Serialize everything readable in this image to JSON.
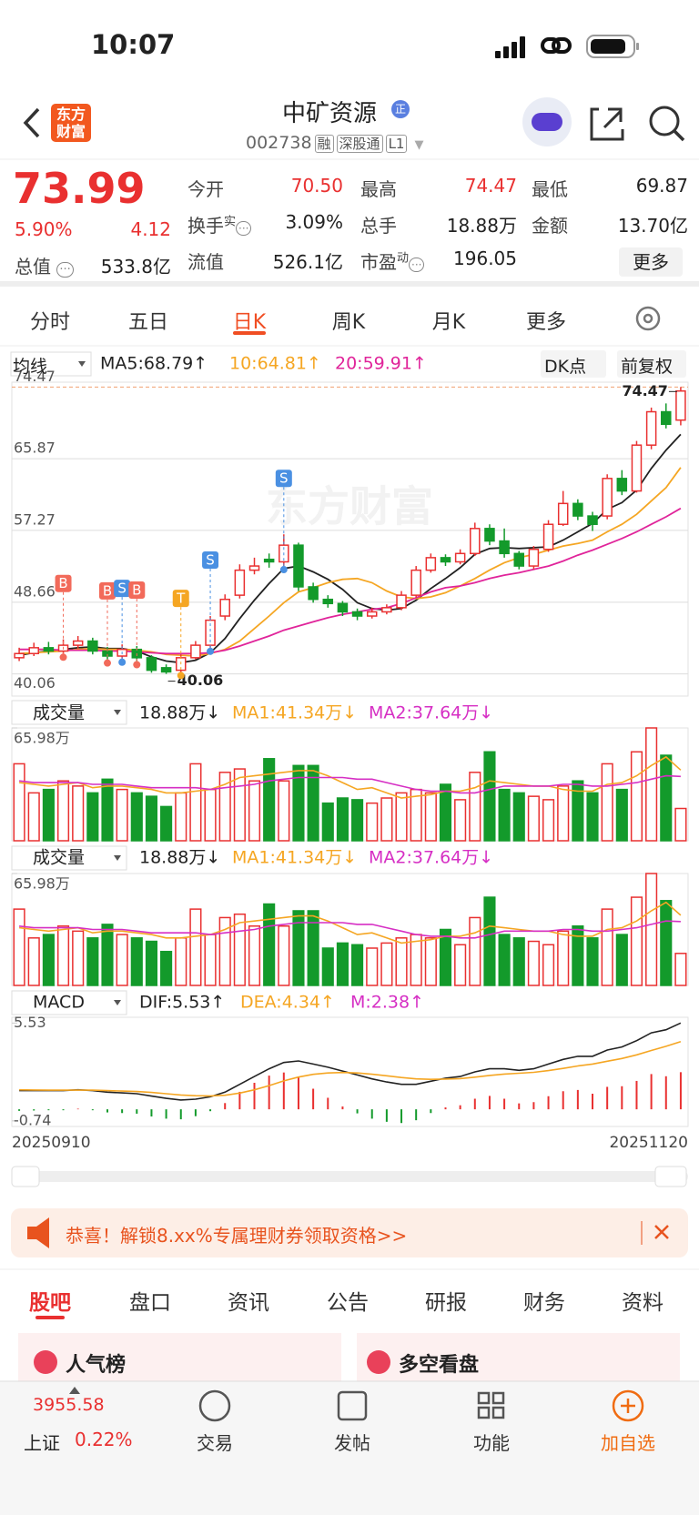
{
  "status_bar": {
    "time": "10:07"
  },
  "header": {
    "logo": [
      "东方",
      "财富"
    ],
    "title": "中矿资源",
    "badge": "正",
    "code": "002738",
    "tags": [
      "融",
      "深股通",
      "L1"
    ]
  },
  "quote": {
    "price": "73.99",
    "change_pct": "5.90%",
    "change": "4.12",
    "total_value": {
      "label": "总值",
      "value": "533.8亿"
    },
    "fields": [
      {
        "label": "今开",
        "value": "70.50",
        "color": "#e93030"
      },
      {
        "label": "最高",
        "value": "74.47",
        "color": "#e93030"
      },
      {
        "label": "最低",
        "value": "69.87"
      },
      {
        "label": "换手",
        "sup": "实",
        "value": "3.09%"
      },
      {
        "label": "总手",
        "value": "18.88万"
      },
      {
        "label": "金额",
        "value": "13.70亿"
      },
      {
        "label": "流值",
        "value": "526.1亿"
      },
      {
        "label": "市盈",
        "sup": "动",
        "value": "196.05"
      }
    ],
    "more": "更多"
  },
  "period_tabs": {
    "items": [
      "分时",
      "五日",
      "日K",
      "周K",
      "月K",
      "更多"
    ],
    "active": 2
  },
  "toolbar": {
    "indicator": "均线",
    "dk": "DK点",
    "adjust": "前复权"
  },
  "chart_data": [
    {
      "type": "candlestick",
      "watermark": "东方财富",
      "open": [
        42.0,
        42.5,
        43.2,
        42.8,
        43.5,
        44.0,
        42.8,
        42.2,
        43.0,
        42.0,
        40.8,
        40.5,
        42.0,
        43.5,
        47.0,
        49.5,
        52.5,
        53.8,
        53.5,
        55.5,
        50.5,
        49.0,
        48.5,
        47.5,
        47.0,
        47.5,
        48.0,
        49.5,
        52.5,
        54.0,
        53.5,
        54.5,
        57.5,
        56.0,
        54.5,
        53.0,
        55.0,
        58.0,
        60.5,
        59.0,
        59.0,
        63.5,
        62.0,
        67.5,
        71.5,
        70.5
      ],
      "close": [
        42.5,
        43.2,
        42.8,
        43.5,
        44.0,
        42.8,
        42.2,
        43.0,
        42.0,
        40.5,
        40.3,
        42.0,
        43.5,
        46.5,
        49.0,
        52.5,
        53.0,
        53.5,
        55.5,
        50.5,
        49.0,
        48.5,
        47.5,
        47.0,
        47.5,
        48.0,
        49.5,
        52.5,
        54.0,
        53.5,
        54.5,
        57.5,
        56.0,
        54.5,
        53.0,
        55.0,
        58.0,
        60.5,
        59.0,
        58.0,
        63.5,
        62.0,
        67.5,
        71.5,
        70.0,
        73.99
      ],
      "high": [
        43.2,
        43.8,
        43.9,
        44.2,
        44.6,
        44.4,
        43.3,
        43.6,
        43.4,
        42.3,
        41.2,
        42.4,
        44.0,
        47.0,
        49.6,
        53.2,
        54.0,
        54.5,
        56.8,
        55.8,
        51.0,
        49.5,
        48.8,
        47.9,
        48.0,
        48.4,
        50.0,
        53.0,
        54.5,
        54.4,
        55.0,
        58.2,
        58.0,
        57.5,
        54.8,
        55.4,
        58.5,
        62.0,
        61.0,
        59.5,
        64.0,
        64.5,
        68.0,
        72.0,
        72.5,
        74.47
      ],
      "low": [
        41.6,
        42.2,
        42.4,
        42.5,
        43.1,
        42.4,
        41.8,
        41.9,
        41.6,
        40.2,
        40.06,
        40.3,
        41.8,
        43.2,
        46.5,
        49.1,
        52.0,
        52.8,
        53.0,
        50.0,
        48.6,
        48.0,
        47.0,
        46.5,
        46.7,
        47.2,
        47.7,
        49.2,
        52.2,
        53.0,
        53.2,
        54.2,
        55.5,
        54.0,
        52.6,
        52.6,
        54.7,
        57.8,
        58.5,
        57.2,
        58.6,
        61.5,
        61.8,
        67.0,
        69.5,
        69.87
      ],
      "up_color": "#e93030",
      "down_color": "#139a2b",
      "series": [
        {
          "name": "MA5:68.79↑",
          "color": "#222222",
          "values": [
            42.3,
            42.6,
            42.8,
            43.0,
            43.2,
            43.3,
            43.1,
            43.1,
            42.8,
            42.1,
            41.6,
            41.4,
            41.7,
            42.6,
            44.3,
            46.7,
            48.9,
            50.9,
            52.7,
            53.0,
            52.3,
            51.4,
            50.2,
            48.6,
            47.9,
            47.7,
            47.9,
            48.9,
            50.3,
            51.5,
            52.8,
            54.4,
            55.1,
            55.2,
            55.1,
            55.2,
            55.3,
            56.1,
            57.1,
            58.1,
            59.8,
            60.6,
            62.1,
            64.7,
            66.9,
            68.79
          ]
        },
        {
          "name": "10:64.81↑",
          "color": "#f5a623",
          "values": [
            42.5,
            42.6,
            42.7,
            42.8,
            43.0,
            43.1,
            43.0,
            43.0,
            42.9,
            42.7,
            42.4,
            42.3,
            42.2,
            42.5,
            43.0,
            44.0,
            45.5,
            47.0,
            48.6,
            49.9,
            50.4,
            51.0,
            51.4,
            51.5,
            51.0,
            50.0,
            49.3,
            49.1,
            49.3,
            49.8,
            50.6,
            51.5,
            52.5,
            53.4,
            54.0,
            54.4,
            54.9,
            55.4,
            55.7,
            56.1,
            57.1,
            58.0,
            59.2,
            60.8,
            62.4,
            64.81
          ]
        },
        {
          "name": "20:59.91↑",
          "color": "#e0249a",
          "values": [
            43.0,
            43.0,
            43.0,
            42.9,
            42.9,
            42.9,
            42.8,
            42.8,
            42.7,
            42.6,
            42.5,
            42.5,
            42.5,
            42.6,
            42.9,
            43.4,
            44.0,
            44.6,
            45.3,
            45.8,
            46.3,
            46.8,
            47.2,
            47.5,
            47.8,
            48.0,
            48.5,
            49.2,
            49.9,
            50.4,
            50.6,
            51.0,
            51.5,
            51.9,
            52.2,
            52.6,
            53.0,
            53.6,
            54.3,
            54.9,
            55.6,
            56.3,
            57.1,
            58.0,
            58.9,
            59.91
          ]
        }
      ],
      "signals": [
        {
          "label": "B",
          "index": 3,
          "color": "#f26a5a"
        },
        {
          "label": "B",
          "index": 6,
          "color": "#f26a5a"
        },
        {
          "label": "S",
          "index": 7,
          "color": "#4a90e2"
        },
        {
          "label": "B",
          "index": 8,
          "color": "#f26a5a"
        },
        {
          "label": "T",
          "index": 11,
          "color": "#f5a623"
        },
        {
          "label": "S",
          "index": 13,
          "color": "#4a90e2"
        },
        {
          "label": "S",
          "index": 18,
          "color": "#4a90e2"
        }
      ],
      "ylim": [
        37.4,
        75.05
      ],
      "yticks": [
        74.47,
        65.87,
        57.27,
        48.66,
        40.06
      ]
    },
    {
      "type": "bar",
      "title": "成交量",
      "current": "18.88万↓",
      "values": [
        45,
        28,
        30,
        35,
        32,
        28,
        36,
        30,
        28,
        26,
        20,
        28,
        45,
        30,
        40,
        42,
        35,
        48,
        35,
        44,
        44,
        22,
        25,
        24,
        22,
        25,
        28,
        30,
        28,
        33,
        24,
        40,
        52,
        30,
        28,
        26,
        24,
        32,
        35,
        28,
        45,
        30,
        52,
        65.98,
        50,
        18.88
      ],
      "series": [
        {
          "name": "MA1:41.34万↓",
          "color": "#f5a623",
          "values": [
            34,
            33,
            32,
            33,
            34,
            31,
            32,
            32,
            31,
            30,
            28,
            28,
            29,
            30,
            33,
            37,
            38,
            39,
            40,
            41,
            41,
            38,
            34,
            30,
            31,
            28,
            25,
            26,
            27,
            29,
            29,
            31,
            35,
            34,
            33,
            32,
            32,
            30,
            29,
            29,
            33,
            34,
            38,
            44,
            49,
            41.34
          ]
        },
        {
          "name": "MA2:37.64万↓",
          "color": "#d62fc4",
          "values": [
            35,
            34,
            34,
            34,
            34,
            33,
            33,
            33,
            32,
            31,
            31,
            31,
            31,
            30,
            31,
            32,
            33,
            35,
            36,
            37,
            37,
            37,
            37,
            36,
            36,
            34,
            32,
            30,
            29,
            29,
            28,
            28,
            30,
            32,
            32,
            32,
            32,
            33,
            33,
            32,
            32,
            33,
            34,
            36,
            38,
            37.64
          ]
        }
      ],
      "ylim": [
        0,
        65.98
      ],
      "yticks": [
        {
          "value": 65.98,
          "label": "65.98万"
        }
      ]
    },
    {
      "type": "macd",
      "title": "MACD",
      "series": [
        {
          "name": "DIF:5.53↑",
          "color": "#222222",
          "values": [
            1.2,
            1.2,
            1.2,
            1.2,
            1.25,
            1.2,
            1.1,
            1.05,
            1.0,
            0.85,
            0.7,
            0.6,
            0.65,
            0.8,
            1.1,
            1.6,
            2.1,
            2.6,
            3.0,
            3.1,
            2.9,
            2.7,
            2.45,
            2.2,
            1.95,
            1.75,
            1.6,
            1.6,
            1.8,
            2.0,
            2.1,
            2.4,
            2.6,
            2.6,
            2.5,
            2.6,
            2.9,
            3.2,
            3.4,
            3.4,
            3.8,
            4.0,
            4.4,
            4.9,
            5.1,
            5.53
          ]
        },
        {
          "name": "DEA:4.34↑",
          "color": "#f5a623",
          "values": [
            1.25,
            1.24,
            1.23,
            1.23,
            1.23,
            1.23,
            1.2,
            1.17,
            1.14,
            1.08,
            1.0,
            0.92,
            0.87,
            0.86,
            0.9,
            1.04,
            1.25,
            1.52,
            1.82,
            2.07,
            2.24,
            2.33,
            2.36,
            2.33,
            2.25,
            2.15,
            2.04,
            1.95,
            1.92,
            1.94,
            1.97,
            2.06,
            2.17,
            2.26,
            2.31,
            2.37,
            2.48,
            2.62,
            2.78,
            2.9,
            3.08,
            3.26,
            3.49,
            3.77,
            4.04,
            4.34
          ]
        }
      ],
      "histogram": {
        "name": "M:2.38↑",
        "color": "#d62fc4",
        "values": [
          -0.1,
          -0.08,
          -0.06,
          -0.06,
          0.04,
          -0.06,
          -0.2,
          -0.24,
          -0.28,
          -0.46,
          -0.6,
          -0.64,
          -0.44,
          -0.12,
          0.4,
          1.12,
          1.7,
          2.16,
          2.36,
          2.06,
          1.32,
          0.74,
          0.18,
          -0.26,
          -0.6,
          -0.8,
          -0.88,
          -0.7,
          -0.24,
          0.12,
          0.26,
          0.68,
          0.86,
          0.68,
          0.38,
          0.46,
          0.84,
          1.16,
          1.24,
          1.0,
          1.44,
          1.48,
          1.82,
          2.26,
          2.12,
          2.38
        ]
      },
      "up_color": "#e93030",
      "down_color": "#139a2b",
      "ylim": [
        -1.1,
        5.9
      ],
      "yticks": [
        5.53,
        -0.74
      ]
    }
  ],
  "date_range": [
    "20250910",
    "20251120"
  ],
  "banner": "恭喜！解锁8.xx%专属理财券领取资格>>",
  "tabs": {
    "items": [
      "股吧",
      "盘口",
      "资讯",
      "公告",
      "研报",
      "财务",
      "资料"
    ],
    "active": 0
  },
  "cards": [
    "人气榜",
    "多空看盘"
  ],
  "bottom_nav": {
    "index_value": "3955.58",
    "index_name": "上证",
    "index_change": "0.22%",
    "items": [
      "交易",
      "发帖",
      "功能",
      "加自选"
    ]
  }
}
